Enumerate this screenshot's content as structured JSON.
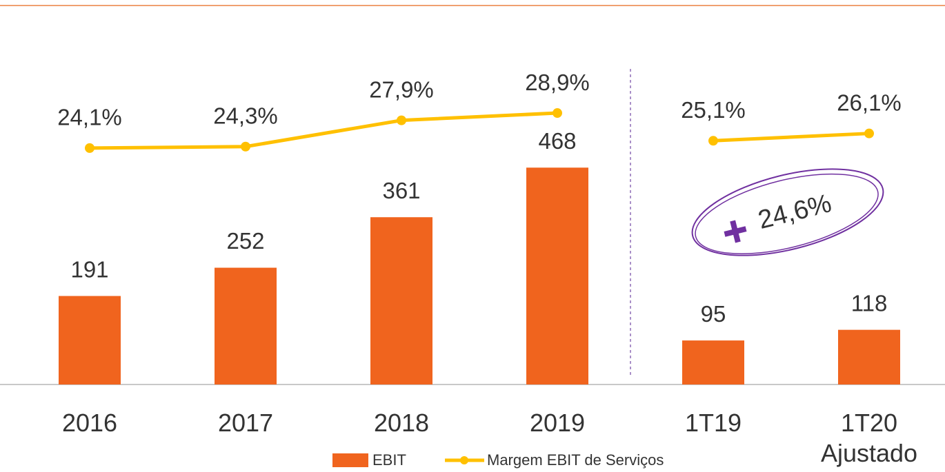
{
  "chart_data": {
    "type": "bar_line",
    "categories": [
      "2016",
      "2017",
      "2018",
      "2019",
      "1T19",
      "1T20 Ajustado"
    ],
    "series": [
      {
        "name": "EBIT",
        "type": "bar",
        "color": "#f0641e",
        "values": [
          191,
          252,
          361,
          468,
          95,
          118
        ]
      },
      {
        "name": "Margem EBIT de Serviços",
        "type": "line",
        "axis": "y2",
        "color": "#ffc000",
        "values": [
          24.1,
          24.3,
          27.9,
          28.9,
          25.1,
          26.1
        ],
        "value_labels": [
          "24,1%",
          "24,3%",
          "27,9%",
          "28,9%",
          "25,1%",
          "26,1%"
        ]
      }
    ],
    "ylim": [
      0,
      800
    ],
    "y2lim": [
      -8.3,
      42.5
    ],
    "divider": {
      "after": "2019"
    },
    "annotation": "24,6%",
    "annotation_color": "#7030a0",
    "legend": "bottom"
  }
}
